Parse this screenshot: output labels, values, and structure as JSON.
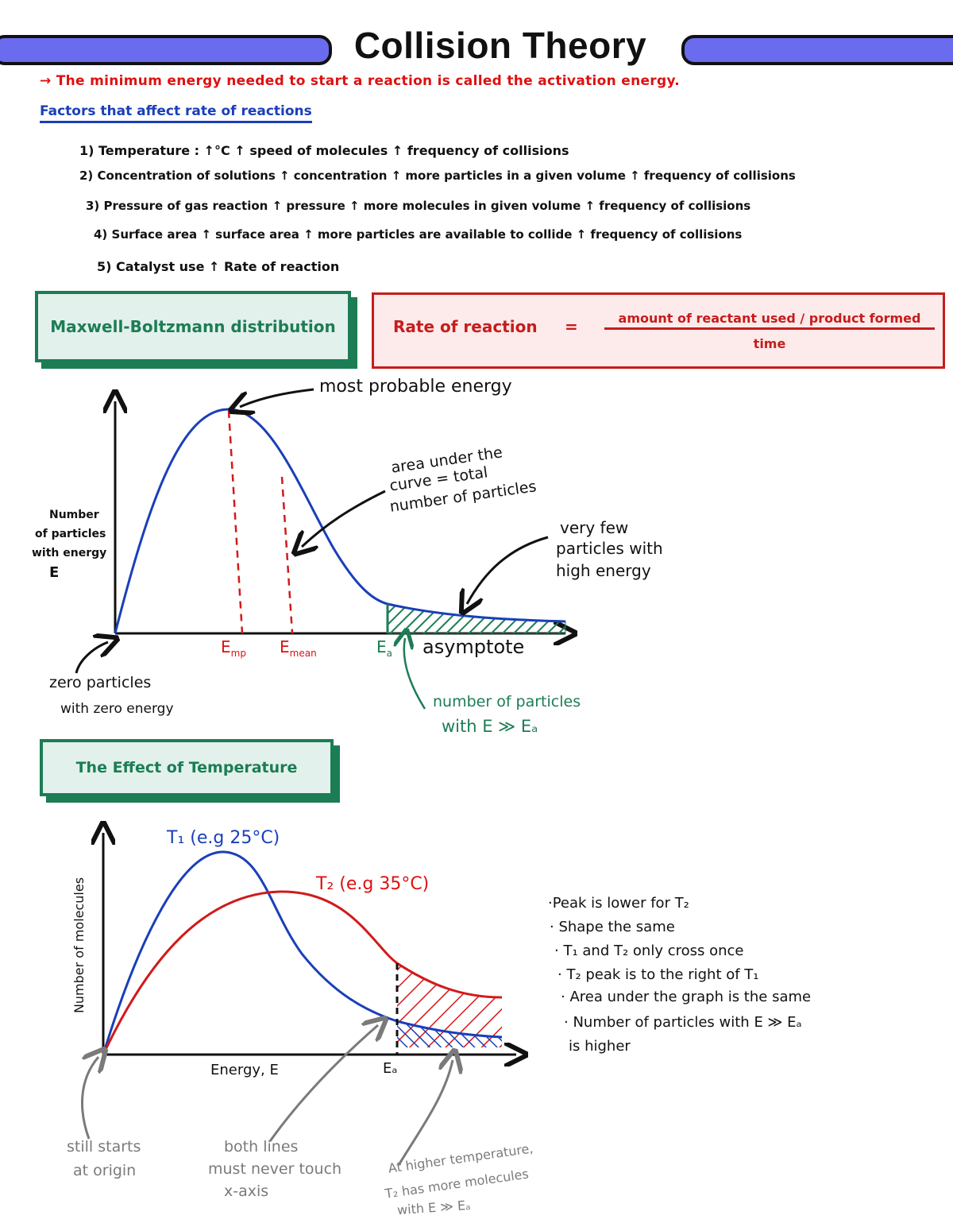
{
  "title": "Collision Theory",
  "activation_note": "→ The minimum energy needed to start a reaction is called the activation energy.",
  "factors_heading": "Factors that affect rate of reactions",
  "factors": [
    "1)  Temperature : ↑°C ↑ speed of molecules ↑ frequency of collisions",
    "2)  Concentration of solutions  ↑ concentration  ↑ more particles in a given volume  ↑ frequency of collisions",
    "3)  Pressure of gas reaction   ↑  pressure  ↑ more molecules in given volume ↑ frequency of collisions",
    "4)  Surface area  ↑ surface area ↑ more particles are available to collide  ↑ frequency of collisions",
    "5)  Catalyst use   ↑ Rate of reaction"
  ],
  "mb_box": "Maxwell-Boltzmann distribution",
  "rate_box": {
    "label": "Rate of reaction",
    "equals": "=",
    "numerator": "amount of reactant used / product formed",
    "denominator": "time"
  },
  "mb_graph": {
    "y_label": [
      "Number",
      "of particles",
      "with energy",
      "E"
    ],
    "most_probable": "most probable energy",
    "area_note": [
      "area under the",
      "curve = total",
      "number of particles"
    ],
    "few_note": [
      "very few",
      "particles with",
      "high energy"
    ],
    "e_mp": "E",
    "e_mp_sub": "mp",
    "e_mean": "E",
    "e_mean_sub": "mean",
    "e_a": "E",
    "e_a_sub": "a",
    "asymptote": "asymptote",
    "zero_note": [
      "zero particles",
      "with zero energy"
    ],
    "ea_note": [
      "number of particles",
      "with  E ≫ Eₐ"
    ]
  },
  "temp_box": "The Effect of Temperature",
  "temp_graph": {
    "y_label": "Number of molecules",
    "x_label": "Energy, E",
    "ea_label": "Eₐ",
    "t1_label": "T₁ (e.g 25°C)",
    "t2_label": "T₂ (e.g 35°C)",
    "gray_notes": {
      "origin": [
        "still starts",
        "at origin"
      ],
      "axis": [
        "both lines",
        "must never touch",
        "x-axis"
      ],
      "higher": [
        "At higher temperature,",
        "T₂ has more molecules",
        "with  E ≫ Eₐ"
      ]
    }
  },
  "observations": [
    "·Peak is lower for T₂",
    "· Shape the same",
    "· T₁ and T₂ only cross once",
    "· T₂ peak is to the right of T₁",
    "· Area under the graph is the same",
    "· Number of particles with E ≫ Eₐ",
    "   is higher"
  ],
  "colors": {
    "blue_curve": "#1a3fb8",
    "red_curve": "#d11a1a",
    "green": "#1c7d55",
    "gray": "#7a7a7a",
    "header_bar": "#6b6bf0"
  }
}
